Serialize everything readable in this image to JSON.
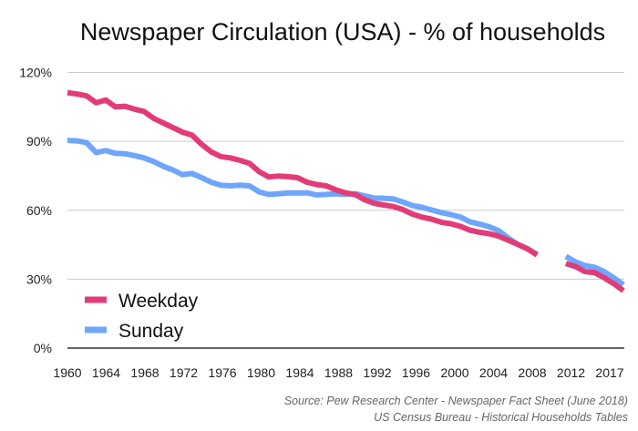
{
  "chart_data": {
    "type": "line",
    "title": "Newspaper Circulation (USA) - % of households",
    "xlabel": "",
    "ylabel": "",
    "x_tick_labels": [
      "1960",
      "1964",
      "1968",
      "1972",
      "1976",
      "1980",
      "1984",
      "1988",
      "1992",
      "1996",
      "2000",
      "2004",
      "2008",
      "2012",
      "2017"
    ],
    "y_tick_labels": [
      "0%",
      "30%",
      "60%",
      "90%",
      "120%"
    ],
    "y_ticks": [
      0,
      30,
      60,
      90,
      120
    ],
    "xlim": [
      1960,
      2018
    ],
    "ylim": [
      0,
      120
    ],
    "grid": true,
    "legend_placement": "bottom-left",
    "x": [
      1960,
      1961,
      1962,
      1963,
      1964,
      1965,
      1966,
      1967,
      1968,
      1969,
      1970,
      1971,
      1972,
      1973,
      1974,
      1975,
      1976,
      1977,
      1978,
      1979,
      1980,
      1981,
      1982,
      1983,
      1984,
      1985,
      1986,
      1987,
      1988,
      1989,
      1990,
      1991,
      1992,
      1993,
      1994,
      1995,
      1996,
      1997,
      1998,
      1999,
      2000,
      2001,
      2002,
      2003,
      2004,
      2005,
      2006,
      2007,
      2008,
      2009,
      2010,
      2011,
      2012,
      2013,
      2014,
      2015,
      2016,
      2017,
      2018
    ],
    "series": [
      {
        "name": "Weekday",
        "color": "#e23c78",
        "values": [
          111.2,
          110.6,
          109.8,
          106.8,
          108,
          105,
          105.3,
          104,
          103,
          100,
          98,
          96,
          94,
          92.7,
          88.7,
          85.4,
          83.4,
          82.8,
          81.7,
          80.4,
          76.8,
          74.5,
          74.9,
          74.6,
          74.2,
          72.2,
          71.2,
          70.6,
          68.9,
          67.6,
          66.9,
          64.6,
          63,
          62.3,
          61.6,
          60.3,
          58.3,
          57,
          56.1,
          54.8,
          54.1,
          53,
          51.3,
          50.4,
          49.8,
          48.7,
          46.9,
          45.1,
          43.2,
          40.5,
          null,
          null,
          36.8,
          35.5,
          33.3,
          32.9,
          30.6,
          28,
          25
        ]
      },
      {
        "name": "Sunday",
        "color": "#6ea6fb",
        "values": [
          90.4,
          90.2,
          89.4,
          85.1,
          86,
          84.8,
          84.6,
          83.8,
          82.8,
          81.2,
          79.1,
          77.5,
          75.5,
          76,
          74.2,
          72.2,
          70.9,
          70.6,
          70.9,
          70.6,
          68,
          66.9,
          67.2,
          67.5,
          67.5,
          67.6,
          66.7,
          66.9,
          67.2,
          66.9,
          67.2,
          66.3,
          65.3,
          65.2,
          64.9,
          63.6,
          62,
          61.3,
          60.1,
          59,
          58.1,
          57,
          55,
          54,
          52.8,
          51.1,
          47.8,
          45.1,
          43.2,
          40.8,
          null,
          null,
          39.9,
          37.5,
          35.9,
          35.2,
          33.3,
          30.6,
          27.6
        ]
      }
    ],
    "source_lines": [
      "Source: Pew Research Center - Newspaper Fact Sheet (June 2018)",
      "US Census Bureau - Historical Households Tables"
    ]
  }
}
